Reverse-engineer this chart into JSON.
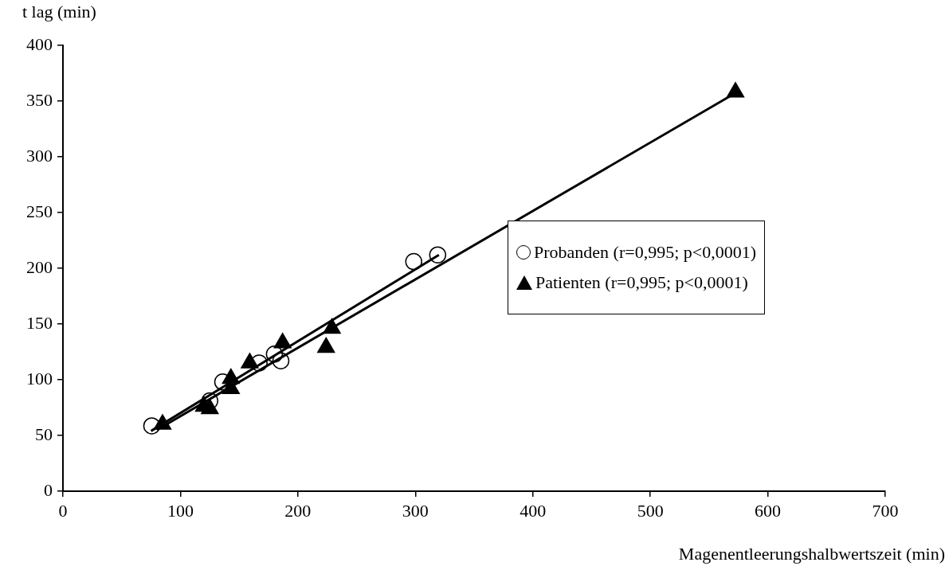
{
  "chart_data": {
    "type": "scatter",
    "xlabel": "Magenentleerungshalbwertszeit (min)",
    "ylabel": "t lag (min)",
    "xlim": [
      0,
      700
    ],
    "xticks": [
      0,
      100,
      200,
      300,
      400,
      500,
      600,
      700
    ],
    "ylim": [
      0,
      400
    ],
    "yticks": [
      0,
      50,
      100,
      150,
      200,
      250,
      300,
      350,
      400
    ],
    "grid": false,
    "legend": "right",
    "series": [
      {
        "name": "Probanden (r=0,995; p<0,0001)",
        "color": "#000000",
        "marker": "circle",
        "x": [
          75.6,
          125,
          136,
          167,
          180,
          185.5,
          298.6,
          319
        ],
        "values": [
          58.6,
          81,
          98,
          115,
          123,
          117,
          206,
          212
        ]
      },
      {
        "name": "Patienten (r=0,995; p<0,0001)",
        "color": "#000000",
        "marker": "triangle",
        "x": [
          84.8,
          120,
          125,
          143,
          143,
          159,
          187,
          224,
          229,
          572.5
        ],
        "values": [
          60,
          76,
          74,
          101,
          92,
          115,
          133,
          129,
          146,
          358
        ]
      },
      {
        "type": "line",
        "color": "#000000",
        "marker": "none",
        "x": [
          75,
          320
        ],
        "values": [
          54,
          212
        ]
      },
      {
        "type": "line",
        "color": "#000000",
        "marker": "none",
        "x": [
          80,
          572
        ],
        "values": [
          55,
          357
        ]
      }
    ]
  }
}
